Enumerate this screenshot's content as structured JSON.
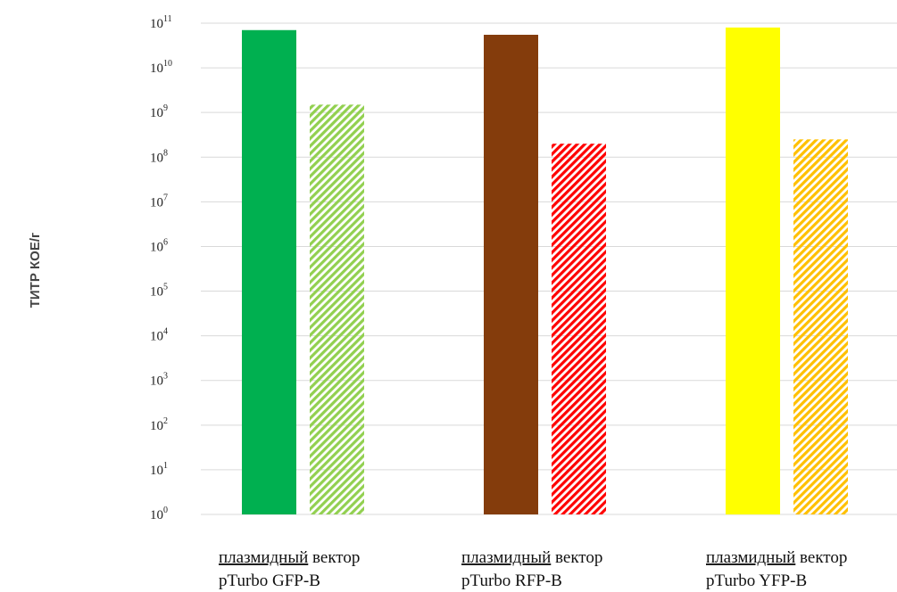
{
  "chart_data": {
    "type": "bar",
    "title": "",
    "xlabel": "",
    "ylabel": "ТИТР КОЕ/г",
    "yscale": "log10",
    "ylim": [
      1,
      100000000000
    ],
    "grid": true,
    "legend": "none",
    "y_ticks": [
      {
        "base": "10",
        "exp": "0",
        "value": 1
      },
      {
        "base": "10",
        "exp": "1",
        "value": 10
      },
      {
        "base": "10",
        "exp": "2",
        "value": 100
      },
      {
        "base": "10",
        "exp": "3",
        "value": 1000
      },
      {
        "base": "10",
        "exp": "4",
        "value": 10000
      },
      {
        "base": "10",
        "exp": "5",
        "value": 100000
      },
      {
        "base": "10",
        "exp": "6",
        "value": 1000000
      },
      {
        "base": "10",
        "exp": "7",
        "value": 10000000
      },
      {
        "base": "10",
        "exp": "8",
        "value": 100000000
      },
      {
        "base": "10",
        "exp": "9",
        "value": 1000000000
      },
      {
        "base": "10",
        "exp": "10",
        "value": 10000000000
      },
      {
        "base": "10",
        "exp": "11",
        "value": 100000000000
      }
    ],
    "categories": [
      {
        "line1_word": "плазмидный",
        "line1_rest": "вектор",
        "line2": "pTurbo GFP-B"
      },
      {
        "line1_word": "плазмидный",
        "line1_rest": "вектор",
        "line2": "pTurbo RFP-B"
      },
      {
        "line1_word": "плазмидный",
        "line1_rest": "вектор",
        "line2": "pTurbo YFP-B"
      }
    ],
    "series": [
      {
        "pattern": "solid",
        "values": [
          70000000000,
          55000000000,
          80000000000
        ],
        "colors": [
          "#00b050",
          "#843c0c",
          "#ffff00"
        ]
      },
      {
        "pattern": "diagonal-stripes",
        "values": [
          1500000000,
          200000000,
          250000000
        ],
        "colors": [
          "#92d050",
          "#ff0000",
          "#ffc000"
        ]
      }
    ]
  }
}
